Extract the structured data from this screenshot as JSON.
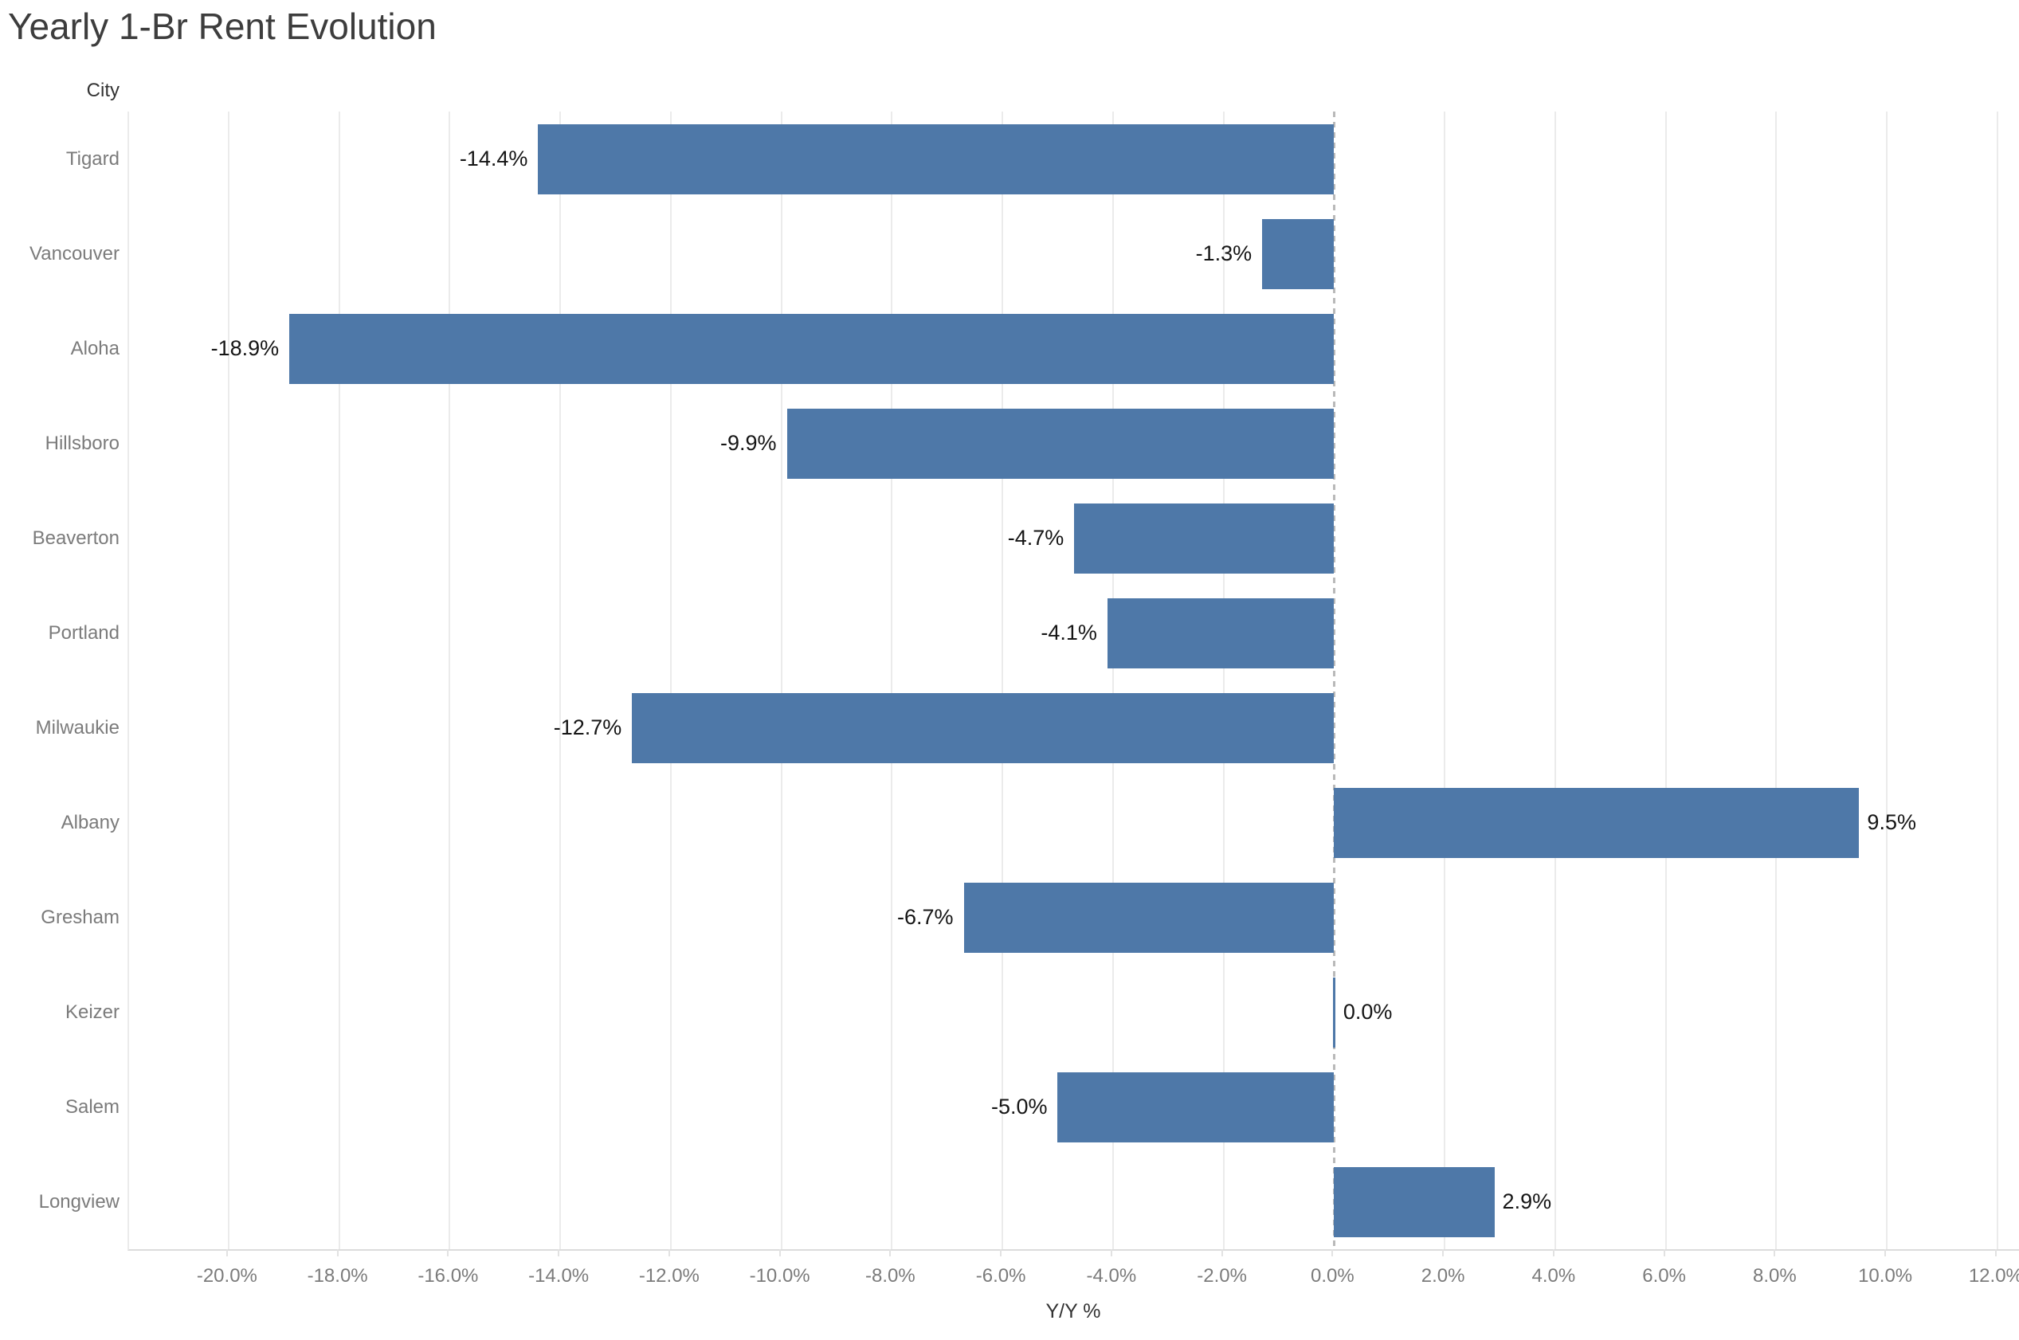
{
  "title": "Yearly 1-Br Rent Evolution",
  "chart_data": {
    "type": "bar",
    "orientation": "horizontal",
    "title": "Yearly 1-Br Rent Evolution",
    "row_header": "City",
    "xlabel": "Y/Y %",
    "xlim": [
      -21.8,
      12.42
    ],
    "grid": true,
    "legend": "none",
    "categories": [
      "Tigard",
      "Vancouver",
      "Aloha",
      "Hillsboro",
      "Beaverton",
      "Portland",
      "Milwaukie",
      "Albany",
      "Gresham",
      "Keizer",
      "Salem",
      "Longview"
    ],
    "values": [
      -14.4,
      -1.3,
      -18.9,
      -9.9,
      -4.7,
      -4.1,
      -12.7,
      9.5,
      -6.7,
      0.0,
      -5.0,
      2.9
    ],
    "value_labels": [
      "-14.4%",
      "-1.3%",
      "-18.9%",
      "-9.9%",
      "-4.7%",
      "-4.1%",
      "-12.7%",
      "9.5%",
      "-6.7%",
      "0.0%",
      "-5.0%",
      "2.9%"
    ],
    "x_ticks": [
      {
        "v": -20,
        "label": "-20.0%"
      },
      {
        "v": -18,
        "label": "-18.0%"
      },
      {
        "v": -16,
        "label": "-16.0%"
      },
      {
        "v": -14,
        "label": "-14.0%"
      },
      {
        "v": -12,
        "label": "-12.0%"
      },
      {
        "v": -10,
        "label": "-10.0%"
      },
      {
        "v": -8,
        "label": "-8.0%"
      },
      {
        "v": -6,
        "label": "-6.0%"
      },
      {
        "v": -4,
        "label": "-4.0%"
      },
      {
        "v": -2,
        "label": "-2.0%"
      },
      {
        "v": 0,
        "label": "0.0%"
      },
      {
        "v": 2,
        "label": "2.0%"
      },
      {
        "v": 4,
        "label": "4.0%"
      },
      {
        "v": 6,
        "label": "6.0%"
      },
      {
        "v": 8,
        "label": "8.0%"
      },
      {
        "v": 10,
        "label": "10.0%"
      },
      {
        "v": 12,
        "label": "12.0%"
      }
    ],
    "colors": {
      "bar": "#4e78a8",
      "gridline": "#ebebeb",
      "zero_line": "#b9b9b9",
      "axis_domain_line": "#dcdcdc",
      "tick_text": "#7b7b7b",
      "category_text": "#7b7b7b",
      "value_label_text": "#151515",
      "title_text": "#3d3d3d",
      "header_text": "#333333",
      "background": "#ffffff"
    }
  }
}
